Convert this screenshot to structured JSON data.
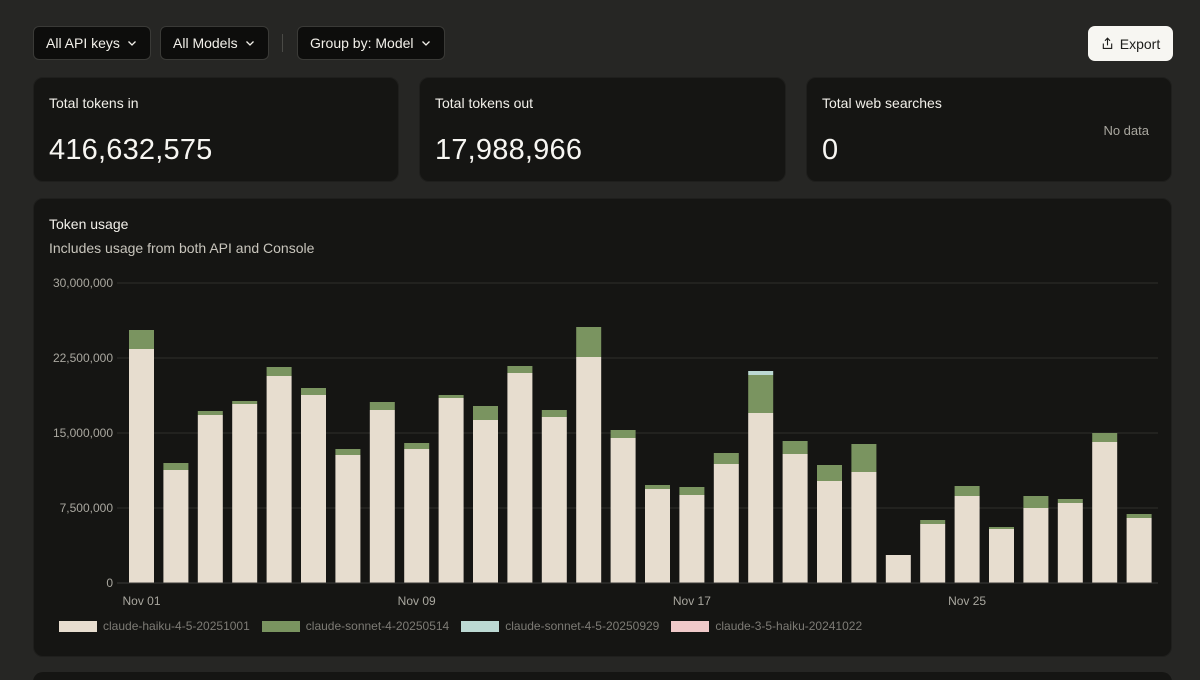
{
  "filters": {
    "api_keys": "All API keys",
    "models": "All Models",
    "group_by": "Group by: Model",
    "export_label": "Export"
  },
  "stats": [
    {
      "title": "Total tokens in",
      "value": "416,632,575"
    },
    {
      "title": "Total tokens out",
      "value": "17,988,966"
    },
    {
      "title": "Total web searches",
      "value": "0",
      "note": "No data"
    }
  ],
  "usage_card": {
    "title": "Token usage",
    "subtitle": "Includes usage from both API and Console"
  },
  "colors": {
    "haiku": "#e7ddcf",
    "sonnet4": "#7a9460",
    "sonnet45": "#bcd9d3",
    "haiku35": "#f0c9c9",
    "grid": "#2e2e2b",
    "tick": "#a9a79f"
  },
  "chart_data": {
    "type": "bar",
    "stacked": true,
    "title": "Token usage",
    "ylim": [
      0,
      30000000
    ],
    "yticks": [
      "30,000,000",
      "22,500,000",
      "15,000,000",
      "7,500,000",
      "0"
    ],
    "ytick_values": [
      30000000,
      22500000,
      15000000,
      7500000,
      0
    ],
    "x_tick_labels": [
      {
        "index": 0,
        "label": "Nov 01"
      },
      {
        "index": 8,
        "label": "Nov 09"
      },
      {
        "index": 16,
        "label": "Nov 17"
      },
      {
        "index": 24,
        "label": "Nov 25"
      }
    ],
    "categories": [
      "Nov 01",
      "Nov 02",
      "Nov 03",
      "Nov 04",
      "Nov 05",
      "Nov 06",
      "Nov 07",
      "Nov 08",
      "Nov 09",
      "Nov 10",
      "Nov 11",
      "Nov 12",
      "Nov 13",
      "Nov 14",
      "Nov 15",
      "Nov 16",
      "Nov 17",
      "Nov 18",
      "Nov 19",
      "Nov 20",
      "Nov 21",
      "Nov 22",
      "Nov 23",
      "Nov 24",
      "Nov 25",
      "Nov 26",
      "Nov 27",
      "Nov 28",
      "Nov 29",
      "Nov 30"
    ],
    "series": [
      {
        "name": "claude-haiku-4-5-20251001",
        "color": "#e7ddcf",
        "values": [
          23400000,
          11300000,
          16800000,
          17900000,
          20700000,
          18800000,
          12800000,
          17300000,
          13400000,
          18500000,
          16300000,
          21000000,
          16600000,
          22600000,
          14500000,
          9400000,
          8800000,
          11900000,
          17000000,
          12900000,
          10200000,
          11100000,
          2800000,
          5900000,
          8700000,
          5400000,
          7500000,
          8000000,
          14100000,
          6500000
        ]
      },
      {
        "name": "claude-sonnet-4-20250514",
        "color": "#7a9460",
        "values": [
          1900000,
          700000,
          400000,
          300000,
          900000,
          700000,
          600000,
          800000,
          600000,
          300000,
          1400000,
          700000,
          700000,
          3000000,
          800000,
          400000,
          800000,
          1100000,
          3800000,
          1300000,
          1600000,
          2800000,
          0,
          400000,
          1000000,
          200000,
          1200000,
          400000,
          900000,
          400000
        ]
      },
      {
        "name": "claude-sonnet-4-5-20250929",
        "color": "#bcd9d3",
        "values": [
          0,
          0,
          0,
          0,
          0,
          0,
          0,
          0,
          0,
          0,
          0,
          0,
          0,
          0,
          0,
          0,
          0,
          0,
          400000,
          0,
          0,
          0,
          0,
          0,
          0,
          0,
          0,
          0,
          0,
          0
        ]
      },
      {
        "name": "claude-3-5-haiku-20241022",
        "color": "#f0c9c9",
        "values": [
          0,
          0,
          0,
          0,
          0,
          0,
          0,
          0,
          0,
          0,
          0,
          0,
          0,
          0,
          0,
          0,
          0,
          0,
          0,
          0,
          0,
          0,
          0,
          0,
          0,
          0,
          0,
          0,
          0,
          0
        ]
      }
    ],
    "legend": [
      "claude-haiku-4-5-20251001",
      "claude-sonnet-4-20250514",
      "claude-sonnet-4-5-20250929",
      "claude-3-5-haiku-20241022"
    ]
  }
}
